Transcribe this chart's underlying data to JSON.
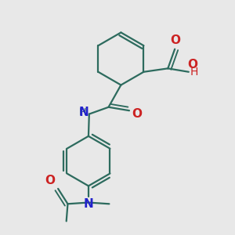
{
  "bg_color": "#e8e8e8",
  "bond_color": "#2d6b5e",
  "N_color": "#2222cc",
  "O_color": "#cc2222",
  "line_width": 1.6,
  "font_size": 10,
  "fig_width": 3.0,
  "fig_height": 3.0,
  "dpi": 100,
  "xlim": [
    0.0,
    3.0
  ],
  "ylim": [
    -0.2,
    3.2
  ]
}
